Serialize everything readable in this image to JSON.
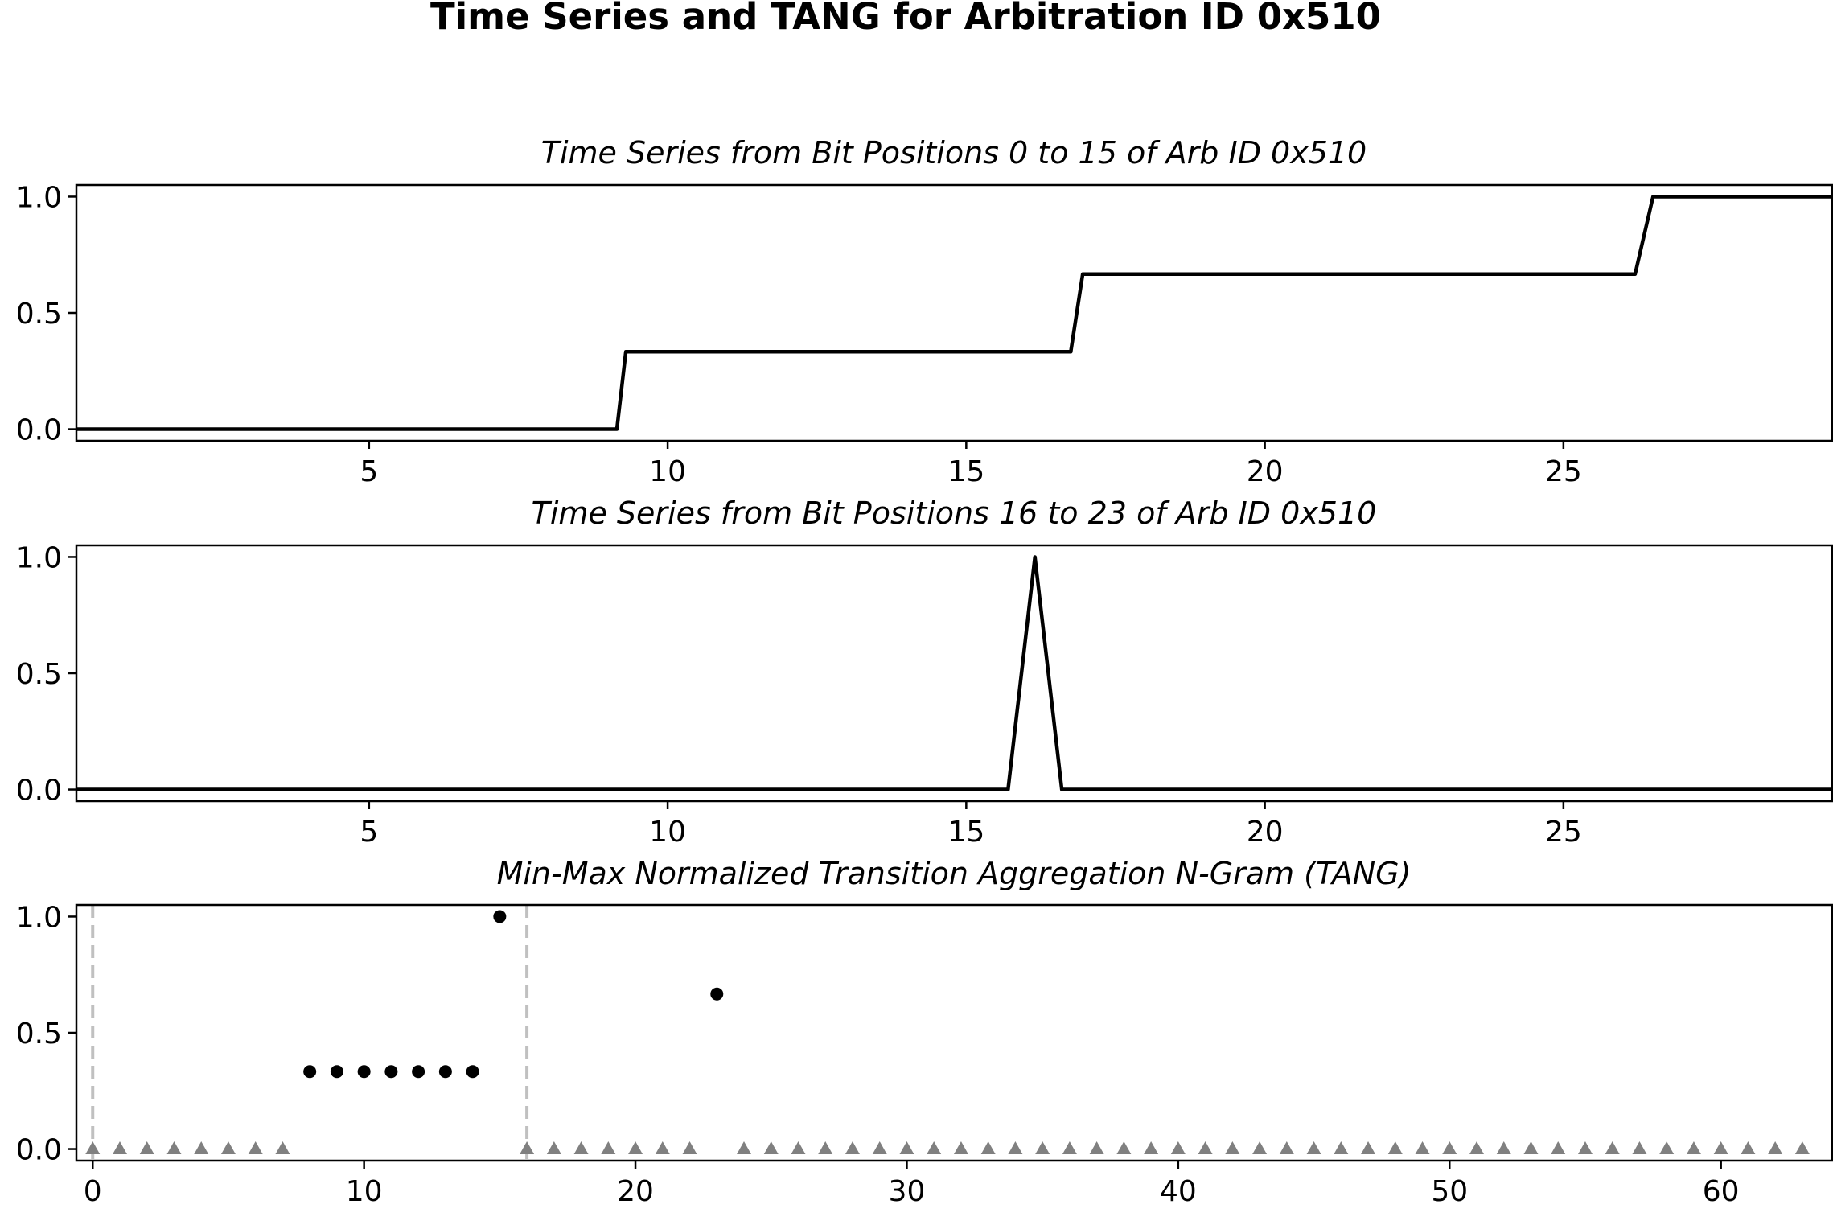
{
  "figure": {
    "title": "Time Series and TANG for Arbitration ID 0x510"
  },
  "chart_data": [
    {
      "type": "line",
      "title": "Time Series from Bit Positions 0 to 15 of Arb ID 0x510",
      "xlabel": "",
      "ylabel": "",
      "xlim": [
        0.1,
        29.5
      ],
      "ylim": [
        -0.05,
        1.05
      ],
      "xticks": [
        5,
        10,
        15,
        20,
        25
      ],
      "yticks": [
        0.0,
        0.5,
        1.0
      ],
      "x": [
        0.1,
        9.15,
        9.3,
        16.75,
        16.95,
        26.2,
        26.5,
        29.5
      ],
      "y": [
        0.0,
        0.0,
        0.333,
        0.333,
        0.667,
        0.667,
        1.0,
        1.0
      ],
      "color": "#000000"
    },
    {
      "type": "line",
      "title": "Time Series from Bit Positions 16 to 23 of Arb ID 0x510",
      "xlabel": "",
      "ylabel": "",
      "xlim": [
        0.1,
        29.5
      ],
      "ylim": [
        -0.05,
        1.05
      ],
      "xticks": [
        5,
        10,
        15,
        20,
        25
      ],
      "yticks": [
        0.0,
        0.5,
        1.0
      ],
      "x": [
        0.1,
        15.7,
        16.15,
        16.6,
        29.5
      ],
      "y": [
        0.0,
        0.0,
        1.0,
        0.0,
        0.0
      ],
      "color": "#000000"
    },
    {
      "type": "scatter",
      "title": "Min-Max Normalized Transition Aggregation N-Gram (TANG)",
      "xlabel": "",
      "ylabel": "",
      "xlim": [
        -0.6,
        64.1
      ],
      "ylim": [
        -0.05,
        1.05
      ],
      "xticks": [
        0,
        10,
        20,
        30,
        40,
        50,
        60
      ],
      "yticks": [
        0.0,
        0.5,
        1.0
      ],
      "vlines": [
        0,
        16
      ],
      "vline_color": "#c0c0c0",
      "series": [
        {
          "marker": "circle",
          "color": "#000000",
          "x": [
            8,
            9,
            10,
            11,
            12,
            13,
            14,
            15,
            23
          ],
          "y": [
            0.333,
            0.333,
            0.333,
            0.333,
            0.333,
            0.333,
            0.333,
            1.0,
            0.667
          ]
        },
        {
          "marker": "triangle",
          "color": "#808080",
          "x": [
            0,
            1,
            2,
            3,
            4,
            5,
            6,
            7,
            16,
            17,
            18,
            19,
            20,
            21,
            22,
            24,
            25,
            26,
            27,
            28,
            29,
            30,
            31,
            32,
            33,
            34,
            35,
            36,
            37,
            38,
            39,
            40,
            41,
            42,
            43,
            44,
            45,
            46,
            47,
            48,
            49,
            50,
            51,
            52,
            53,
            54,
            55,
            56,
            57,
            58,
            59,
            60,
            61,
            62,
            63
          ],
          "y": [
            0,
            0,
            0,
            0,
            0,
            0,
            0,
            0,
            0,
            0,
            0,
            0,
            0,
            0,
            0,
            0,
            0,
            0,
            0,
            0,
            0,
            0,
            0,
            0,
            0,
            0,
            0,
            0,
            0,
            0,
            0,
            0,
            0,
            0,
            0,
            0,
            0,
            0,
            0,
            0,
            0,
            0,
            0,
            0,
            0,
            0,
            0,
            0,
            0,
            0,
            0,
            0,
            0,
            0,
            0
          ]
        }
      ]
    }
  ]
}
